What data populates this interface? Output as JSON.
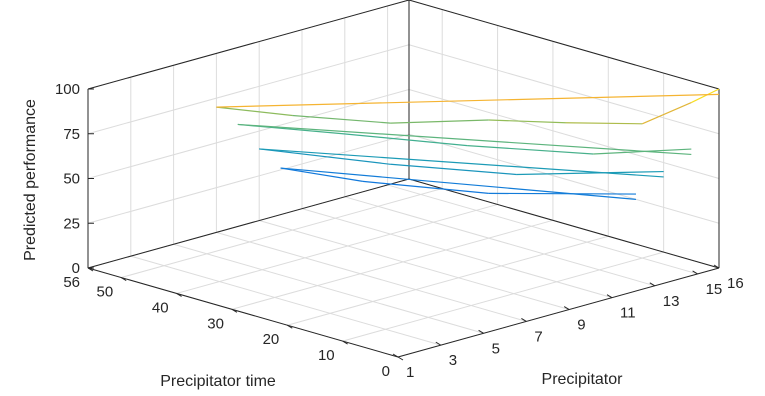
{
  "chart_data": {
    "type": "surface3d",
    "title": "",
    "xlabel": "Precipitator",
    "ylabel": "Precipitator time",
    "zlabel": "Predicted performance",
    "x_ticks": [
      1,
      3,
      5,
      7,
      9,
      11,
      13,
      15,
      16
    ],
    "y_ticks": [
      0,
      10,
      20,
      30,
      40,
      50,
      56
    ],
    "z_ticks": [
      0,
      25,
      50,
      75,
      100
    ],
    "xlim": [
      1,
      16
    ],
    "ylim": [
      0,
      56
    ],
    "zlim": [
      0,
      100
    ],
    "grid": true,
    "colormap": "parula",
    "series": [
      {
        "values": [
          {
            "x": 16,
            "y": 0,
            "z": 100
          },
          {
            "x": 16,
            "y": 5,
            "z": 88
          },
          {
            "x": 15,
            "y": 10,
            "z": 75
          },
          {
            "x": 14,
            "y": 20,
            "z": 70
          },
          {
            "x": 13,
            "y": 30,
            "z": 66
          },
          {
            "x": 11,
            "y": 40,
            "z": 62
          },
          {
            "x": 9,
            "y": 50,
            "z": 64
          },
          {
            "x": 7,
            "y": 56,
            "z": 70
          }
        ]
      },
      {
        "values": [
          {
            "x": 16,
            "y": 5,
            "z": 62
          },
          {
            "x": 14,
            "y": 15,
            "z": 57
          },
          {
            "x": 12,
            "y": 30,
            "z": 55
          },
          {
            "x": 10,
            "y": 45,
            "z": 55
          },
          {
            "x": 8,
            "y": 56,
            "z": 57
          }
        ]
      },
      {
        "values": [
          {
            "x": 16,
            "y": 10,
            "z": 45
          },
          {
            "x": 13,
            "y": 25,
            "z": 40
          },
          {
            "x": 11,
            "y": 40,
            "z": 39
          },
          {
            "x": 9,
            "y": 56,
            "z": 40
          }
        ]
      },
      {
        "values": [
          {
            "x": 16,
            "y": 15,
            "z": 28
          },
          {
            "x": 13,
            "y": 30,
            "z": 25
          },
          {
            "x": 11,
            "y": 45,
            "z": 25
          },
          {
            "x": 10,
            "y": 56,
            "z": 26
          }
        ]
      }
    ]
  }
}
